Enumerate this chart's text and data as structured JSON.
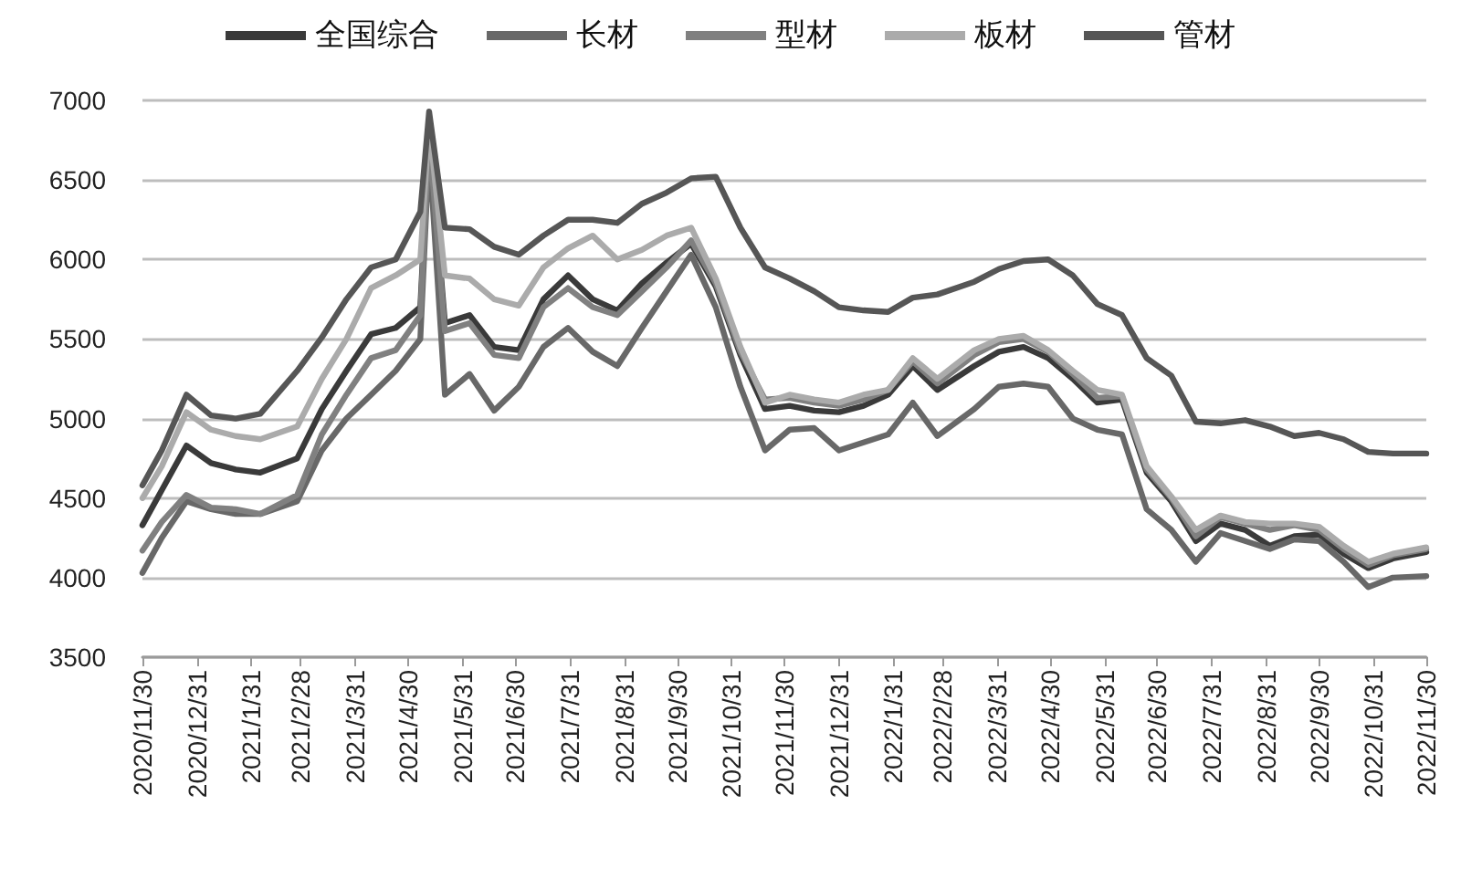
{
  "chart_data": {
    "type": "line",
    "x": [
      "2020-11-30",
      "2020-12-11",
      "2020-12-25",
      "2021-01-08",
      "2021-01-22",
      "2021-02-05",
      "2021-02-26",
      "2021-03-12",
      "2021-03-26",
      "2021-04-09",
      "2021-04-23",
      "2021-05-07",
      "2021-05-12",
      "2021-05-21",
      "2021-06-04",
      "2021-06-18",
      "2021-07-02",
      "2021-07-16",
      "2021-07-30",
      "2021-08-13",
      "2021-08-27",
      "2021-09-10",
      "2021-09-24",
      "2021-10-08",
      "2021-10-22",
      "2021-11-05",
      "2021-11-19",
      "2021-12-03",
      "2021-12-17",
      "2021-12-31",
      "2022-01-14",
      "2022-01-28",
      "2022-02-11",
      "2022-02-25",
      "2022-03-18",
      "2022-04-01",
      "2022-04-15",
      "2022-04-29",
      "2022-05-13",
      "2022-05-27",
      "2022-06-10",
      "2022-06-24",
      "2022-07-08",
      "2022-07-22",
      "2022-08-05",
      "2022-08-19",
      "2022-09-02",
      "2022-09-16",
      "2022-09-30",
      "2022-10-14",
      "2022-10-28",
      "2022-11-11",
      "2022-11-30"
    ],
    "series": [
      {
        "name": "全国综合",
        "color": "#3a3a3a",
        "values": [
          4330,
          4550,
          4830,
          4720,
          4680,
          4660,
          4750,
          5060,
          5300,
          5530,
          5570,
          5700,
          6800,
          5600,
          5650,
          5450,
          5430,
          5750,
          5900,
          5750,
          5680,
          5850,
          5980,
          6100,
          5830,
          5400,
          5060,
          5080,
          5050,
          5040,
          5080,
          5150,
          5330,
          5180,
          5330,
          5420,
          5450,
          5380,
          5250,
          5100,
          5120,
          4660,
          4480,
          4230,
          4340,
          4300,
          4200,
          4260,
          4270,
          4150,
          4060,
          4120,
          4160
        ]
      },
      {
        "name": "长材",
        "color": "#686868",
        "values": [
          4030,
          4250,
          4480,
          4430,
          4400,
          4400,
          4480,
          4800,
          5000,
          5150,
          5300,
          5500,
          6700,
          5150,
          5280,
          5050,
          5200,
          5450,
          5570,
          5420,
          5330,
          5570,
          5800,
          6030,
          5700,
          5200,
          4800,
          4930,
          4940,
          4800,
          4850,
          4900,
          5100,
          4890,
          5060,
          5200,
          5220,
          5200,
          5000,
          4930,
          4900,
          4430,
          4300,
          4100,
          4280,
          4230,
          4180,
          4240,
          4230,
          4100,
          3940,
          4000,
          4010
        ]
      },
      {
        "name": "型材",
        "color": "#808080",
        "values": [
          4170,
          4350,
          4520,
          4440,
          4430,
          4400,
          4520,
          4900,
          5150,
          5380,
          5430,
          5650,
          6780,
          5550,
          5600,
          5400,
          5380,
          5700,
          5820,
          5700,
          5650,
          5800,
          5950,
          6120,
          5850,
          5420,
          5120,
          5130,
          5100,
          5080,
          5120,
          5180,
          5360,
          5220,
          5400,
          5480,
          5500,
          5420,
          5280,
          5130,
          5140,
          4680,
          4500,
          4260,
          4380,
          4340,
          4300,
          4330,
          4300,
          4180,
          4080,
          4140,
          4180
        ]
      },
      {
        "name": "板材",
        "color": "#ababab",
        "values": [
          4500,
          4700,
          5040,
          4930,
          4890,
          4870,
          4950,
          5250,
          5500,
          5820,
          5900,
          6000,
          6850,
          5900,
          5880,
          5750,
          5710,
          5950,
          6070,
          6150,
          6000,
          6060,
          6150,
          6200,
          5880,
          5450,
          5100,
          5150,
          5120,
          5100,
          5150,
          5180,
          5380,
          5250,
          5430,
          5500,
          5520,
          5430,
          5300,
          5180,
          5150,
          4700,
          4510,
          4300,
          4390,
          4350,
          4340,
          4340,
          4320,
          4200,
          4100,
          4150,
          4190
        ]
      },
      {
        "name": "管材",
        "color": "#565656",
        "values": [
          4580,
          4800,
          5150,
          5020,
          5000,
          5030,
          5300,
          5510,
          5750,
          5950,
          6000,
          6300,
          6930,
          6200,
          6190,
          6080,
          6030,
          6150,
          6250,
          6250,
          6230,
          6350,
          6420,
          6510,
          6520,
          6200,
          5950,
          5880,
          5800,
          5700,
          5680,
          5670,
          5760,
          5780,
          5860,
          5940,
          5990,
          6000,
          5900,
          5720,
          5650,
          5380,
          5270,
          4980,
          4970,
          4990,
          4950,
          4890,
          4910,
          4870,
          4790,
          4780,
          4780
        ]
      }
    ],
    "xlim": [
      "2020-11-30",
      "2022-11-30"
    ],
    "xticks": [
      {
        "value": "2020-11-30",
        "label": "2020/11/30"
      },
      {
        "value": "2020-12-31",
        "label": "2020/12/31"
      },
      {
        "value": "2021-01-31",
        "label": "2021/1/31"
      },
      {
        "value": "2021-02-28",
        "label": "2021/2/28"
      },
      {
        "value": "2021-03-31",
        "label": "2021/3/31"
      },
      {
        "value": "2021-04-30",
        "label": "2021/4/30"
      },
      {
        "value": "2021-05-31",
        "label": "2021/5/31"
      },
      {
        "value": "2021-06-30",
        "label": "2021/6/30"
      },
      {
        "value": "2021-07-31",
        "label": "2021/7/31"
      },
      {
        "value": "2021-08-31",
        "label": "2021/8/31"
      },
      {
        "value": "2021-09-30",
        "label": "2021/9/30"
      },
      {
        "value": "2021-10-31",
        "label": "2021/10/31"
      },
      {
        "value": "2021-11-30",
        "label": "2021/11/30"
      },
      {
        "value": "2021-12-31",
        "label": "2021/12/31"
      },
      {
        "value": "2022-01-31",
        "label": "2022/1/31"
      },
      {
        "value": "2022-02-28",
        "label": "2022/2/28"
      },
      {
        "value": "2022-03-31",
        "label": "2022/3/31"
      },
      {
        "value": "2022-04-30",
        "label": "2022/4/30"
      },
      {
        "value": "2022-05-31",
        "label": "2022/5/31"
      },
      {
        "value": "2022-06-30",
        "label": "2022/6/30"
      },
      {
        "value": "2022-07-31",
        "label": "2022/7/31"
      },
      {
        "value": "2022-08-31",
        "label": "2022/8/31"
      },
      {
        "value": "2022-09-30",
        "label": "2022/9/30"
      },
      {
        "value": "2022-10-31",
        "label": "2022/10/31"
      },
      {
        "value": "2022-11-30",
        "label": "2022/11/30"
      }
    ],
    "ylim": [
      3500,
      7000
    ],
    "yticks": [
      3500,
      4000,
      4500,
      5000,
      5500,
      6000,
      6500,
      7000
    ],
    "grid": "y",
    "legend": "top",
    "marker": "none",
    "line_style": "solid"
  }
}
